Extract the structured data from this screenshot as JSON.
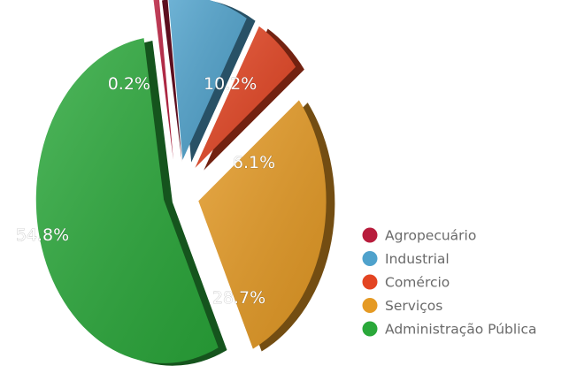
{
  "chart_data": {
    "type": "pie",
    "title": "",
    "categories": [
      "Agropecuário",
      "Industrial",
      "Comércio",
      "Serviços",
      "Administração Pública"
    ],
    "values": [
      0.2,
      10.2,
      6.1,
      28.7,
      54.8
    ],
    "labels": [
      "0.2%",
      "10.2%",
      "6.1%",
      "28.7%",
      "54.8%"
    ],
    "colors": [
      "#b81c3c",
      "#4fa2cc",
      "#e34422",
      "#e59a24",
      "#2aa83a"
    ],
    "exploded": true,
    "three_d": true,
    "legend_position": "right"
  }
}
